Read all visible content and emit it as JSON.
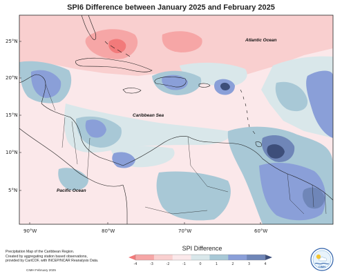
{
  "title": "SPI6 Difference between January 2025 and February 2025",
  "lat_labels": [
    "25°N",
    "20°N",
    "15°N",
    "10°N",
    "5°N"
  ],
  "lon_labels": [
    "90°W",
    "80°W",
    "70°W",
    "60°W"
  ],
  "ocean_labels": {
    "atlantic": "Atlantic Ocean",
    "caribbean": "Caribbean Sea",
    "pacific": "Pacific Ocean"
  },
  "legend": {
    "title": "SPI Difference",
    "ticks": [
      "-4",
      "-3",
      "-2",
      "-1",
      "0",
      "1",
      "2",
      "3",
      "4"
    ],
    "colors": [
      "#f27a7a",
      "#f6a6a6",
      "#f9cfcf",
      "#fbe8ea",
      "#d9e7ea",
      "#a8c8d6",
      "#8a9fd8",
      "#6f86b8",
      "#3d4e7a"
    ]
  },
  "footnote": {
    "line1": "Precipitation Map of the Caribbean Region.",
    "line2": "Created by aggregating station based observations,",
    "line3": "provided by CariCOF, with INCEP/NCAR Reanalysis Data."
  },
  "credit": "CIMH February 2025",
  "logo_text": "CIMH",
  "colors": {
    "dry_strong": "#f27a7a",
    "dry": "#f6a6a6",
    "dry_light": "#f9cfcf",
    "dry_faint": "#fbe8ea",
    "neutral_wet": "#d9e7ea",
    "wet_light": "#a8c8d6",
    "wet": "#8a9fd8",
    "wet_strong": "#6f86b8",
    "wet_extreme": "#3d4e7a"
  }
}
